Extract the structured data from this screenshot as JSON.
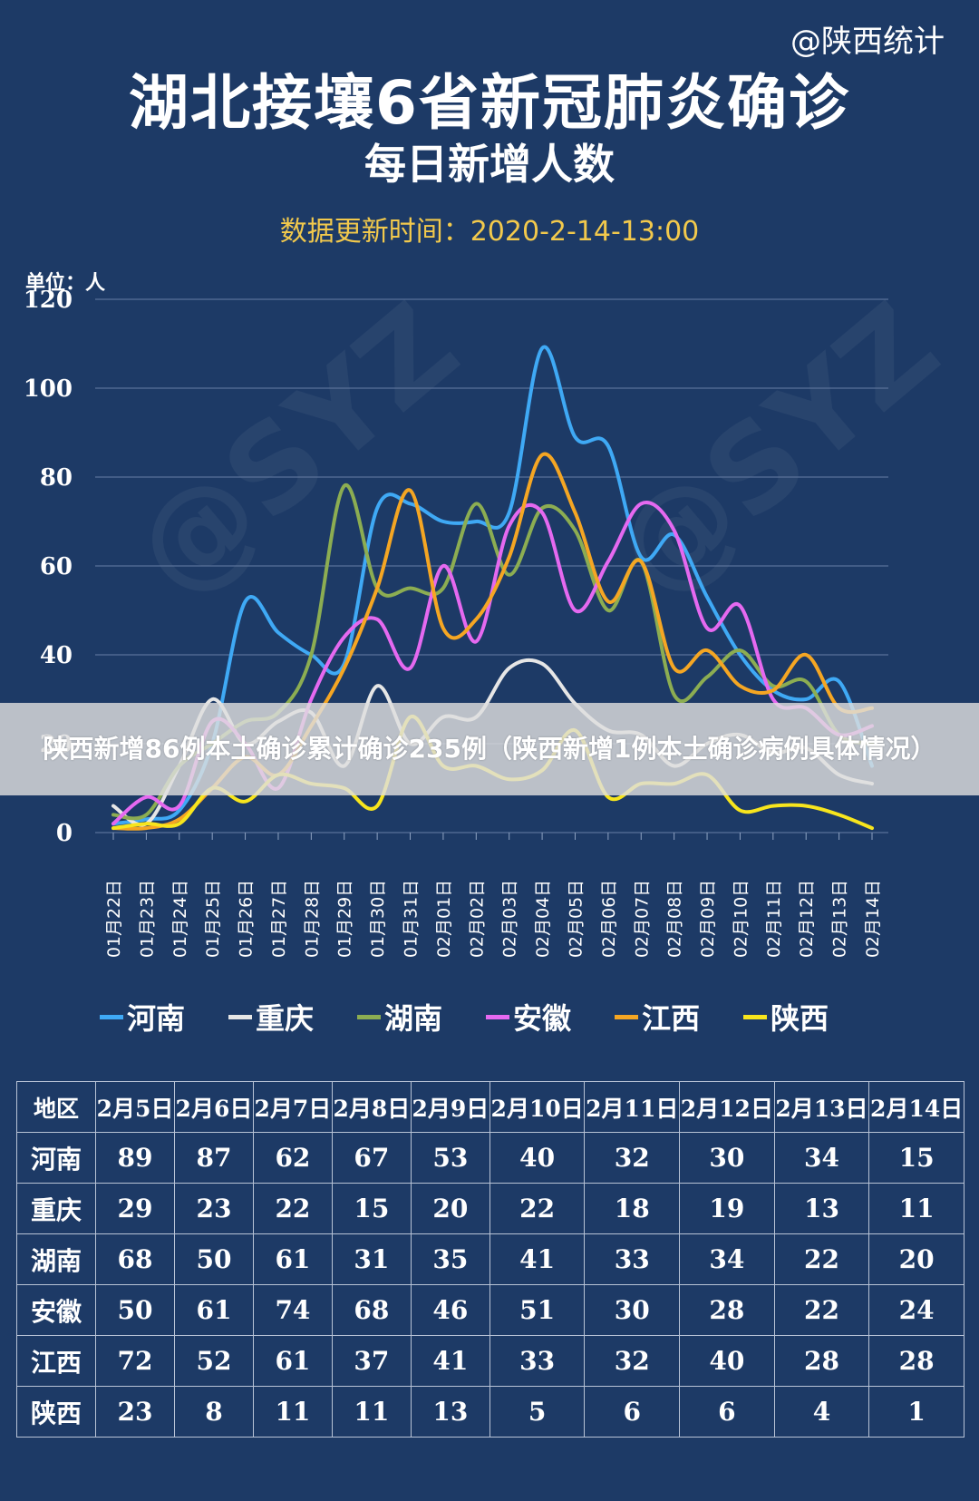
{
  "header": {
    "source": "@陕西统计",
    "title": "湖北接壤6省新冠肺炎确诊",
    "subtitle": "每日新增人数",
    "update_time": "数据更新时间：2020-2-14-13:00",
    "unit": "单位：人"
  },
  "watermark": "@SYZ",
  "banner": {
    "text": "陕西新增86例本土确诊累计确诊235例（陕西新增1例本土确诊病例具体情况）"
  },
  "chart_data": {
    "type": "line",
    "title": "湖北接壤6省新冠肺炎确诊",
    "ylim": [
      0,
      120
    ],
    "yticks": [
      "0",
      "20",
      "40",
      "60",
      "80",
      "100",
      "120"
    ],
    "grid": true,
    "legend_position": "bottom",
    "categories": [
      "01月22日",
      "01月23日",
      "01月24日",
      "01月25日",
      "01月26日",
      "01月27日",
      "01月28日",
      "01月29日",
      "01月30日",
      "01月31日",
      "02月01日",
      "02月02日",
      "02月03日",
      "02月04日",
      "02月05日",
      "02月06日",
      "02月07日",
      "02月08日",
      "02月09日",
      "02月10日",
      "02月11日",
      "02月12日",
      "02月13日",
      "02月14日"
    ],
    "series": [
      {
        "name": "河南",
        "color": "#3fa9f5",
        "values": [
          2,
          3,
          5,
          20,
          52,
          45,
          40,
          38,
          73,
          74,
          70,
          70,
          72,
          109,
          89,
          87,
          62,
          67,
          53,
          40,
          32,
          30,
          34,
          15
        ]
      },
      {
        "name": "重庆",
        "color": "#e6e6e6",
        "values": [
          6,
          2,
          15,
          30,
          20,
          25,
          27,
          15,
          33,
          20,
          26,
          26,
          37,
          38,
          29,
          23,
          22,
          15,
          20,
          22,
          18,
          19,
          13,
          11
        ]
      },
      {
        "name": "湖南",
        "color": "#8cad52",
        "values": [
          4,
          4,
          15,
          20,
          25,
          27,
          40,
          78,
          55,
          55,
          55,
          74,
          58,
          73,
          68,
          50,
          61,
          31,
          35,
          41,
          33,
          34,
          22,
          20
        ]
      },
      {
        "name": "安徽",
        "color": "#e569f0",
        "values": [
          2,
          8,
          6,
          25,
          20,
          10,
          30,
          44,
          48,
          37,
          60,
          43,
          69,
          72,
          50,
          61,
          74,
          68,
          46,
          51,
          30,
          28,
          22,
          24
        ]
      },
      {
        "name": "江西",
        "color": "#f5a623",
        "values": [
          1,
          1,
          3,
          10,
          17,
          13,
          24,
          37,
          55,
          77,
          46,
          48,
          62,
          85,
          72,
          52,
          61,
          37,
          41,
          33,
          32,
          40,
          28,
          28
        ]
      },
      {
        "name": "陕西",
        "color": "#f7e51d",
        "values": [
          1,
          2,
          2,
          10,
          7,
          13,
          11,
          10,
          6,
          26,
          15,
          15,
          12,
          14,
          23,
          8,
          11,
          11,
          13,
          5,
          6,
          6,
          4,
          1
        ]
      }
    ]
  },
  "table": {
    "header": [
      "地区",
      "2月5日",
      "2月6日",
      "2月7日",
      "2月8日",
      "2月9日",
      "2月10日",
      "2月11日",
      "2月12日",
      "2月13日",
      "2月14日"
    ],
    "rows": [
      {
        "label": "河南",
        "values": [
          "89",
          "87",
          "62",
          "67",
          "53",
          "40",
          "32",
          "30",
          "34",
          "15"
        ]
      },
      {
        "label": "重庆",
        "values": [
          "29",
          "23",
          "22",
          "15",
          "20",
          "22",
          "18",
          "19",
          "13",
          "11"
        ]
      },
      {
        "label": "湖南",
        "values": [
          "68",
          "50",
          "61",
          "31",
          "35",
          "41",
          "33",
          "34",
          "22",
          "20"
        ]
      },
      {
        "label": "安徽",
        "values": [
          "50",
          "61",
          "74",
          "68",
          "46",
          "51",
          "30",
          "28",
          "22",
          "24"
        ]
      },
      {
        "label": "江西",
        "values": [
          "72",
          "52",
          "61",
          "37",
          "41",
          "33",
          "32",
          "40",
          "28",
          "28"
        ]
      },
      {
        "label": "陕西",
        "values": [
          "23",
          "8",
          "11",
          "11",
          "13",
          "5",
          "6",
          "6",
          "4",
          "1"
        ]
      }
    ]
  }
}
